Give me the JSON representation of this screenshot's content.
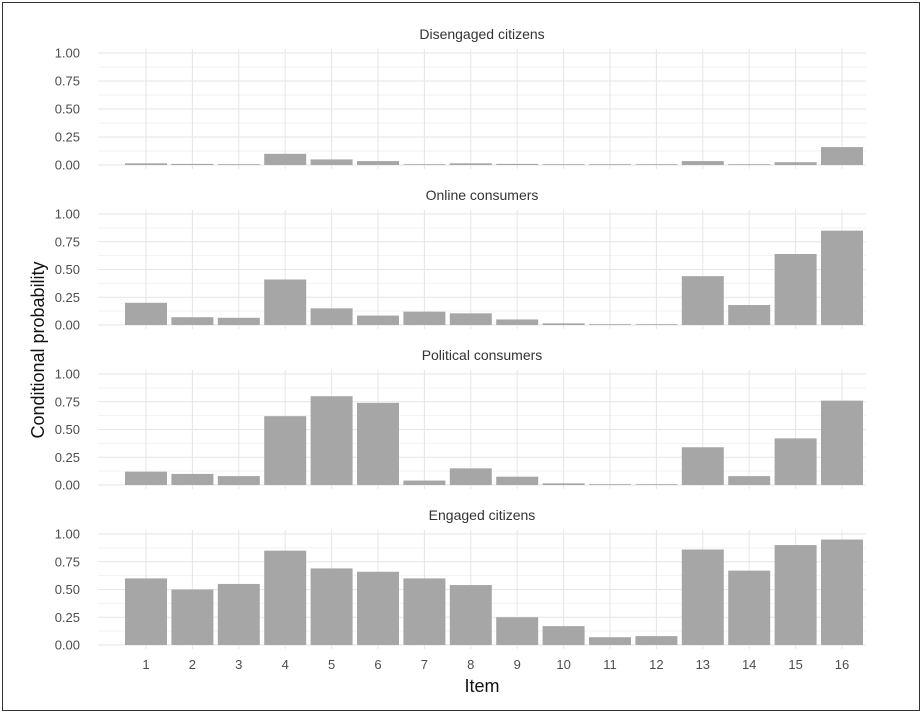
{
  "chart_data": {
    "type": "bar",
    "layout": "faceted",
    "xlabel": "Item",
    "ylabel": "Conditional probability",
    "categories": [
      "1",
      "2",
      "3",
      "4",
      "5",
      "6",
      "7",
      "8",
      "9",
      "10",
      "11",
      "12",
      "13",
      "14",
      "15",
      "16"
    ],
    "ylim": [
      0,
      1
    ],
    "yticks": [
      "0.00",
      "0.25",
      "0.50",
      "0.75",
      "1.00"
    ],
    "grid": true,
    "bar_color": "#a6a6a6",
    "panels": [
      {
        "title": "Disengaged citizens",
        "values": [
          0.015,
          0.01,
          0.005,
          0.1,
          0.05,
          0.035,
          0.005,
          0.015,
          0.01,
          0.005,
          0.005,
          0.003,
          0.035,
          0.005,
          0.025,
          0.16
        ]
      },
      {
        "title": "Online consumers",
        "values": [
          0.2,
          0.07,
          0.065,
          0.41,
          0.15,
          0.085,
          0.12,
          0.105,
          0.05,
          0.015,
          0.005,
          0.005,
          0.44,
          0.18,
          0.64,
          0.85
        ]
      },
      {
        "title": "Political consumers",
        "values": [
          0.12,
          0.1,
          0.08,
          0.62,
          0.8,
          0.74,
          0.04,
          0.15,
          0.075,
          0.015,
          0.005,
          0.005,
          0.34,
          0.08,
          0.42,
          0.76
        ]
      },
      {
        "title": "Engaged citizens",
        "values": [
          0.6,
          0.5,
          0.55,
          0.85,
          0.69,
          0.66,
          0.6,
          0.54,
          0.25,
          0.17,
          0.07,
          0.08,
          0.86,
          0.67,
          0.9,
          0.95
        ]
      }
    ]
  }
}
